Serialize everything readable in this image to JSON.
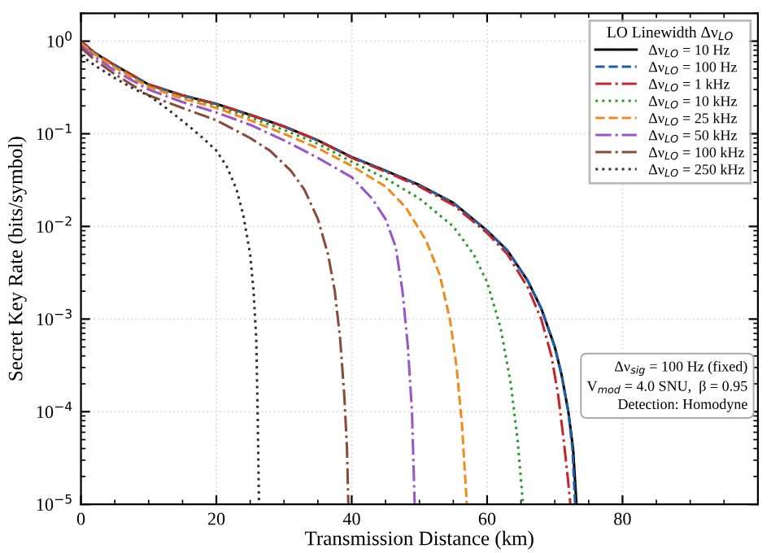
{
  "chart_data": {
    "type": "line",
    "xlabel": "Transmission Distance (km)",
    "ylabel": "Secret Key Rate (bits/symbol)",
    "log": "y",
    "xlim": [
      0,
      100
    ],
    "ylim": [
      1e-05,
      2
    ],
    "xticks": [
      0,
      20,
      40,
      60,
      80
    ],
    "yticks": [
      {
        "value": 1,
        "label": "10$^{0}$"
      },
      {
        "value": 0.1,
        "label": "10$^{−1}$"
      },
      {
        "value": 0.01,
        "label": "10$^{−2}$"
      },
      {
        "value": 0.001,
        "label": "10$^{−3}$"
      },
      {
        "value": 0.0001,
        "label": "10$^{−4}$"
      },
      {
        "value": 1e-05,
        "label": "10$^{−5}$"
      }
    ],
    "grid": true,
    "legend": "top right",
    "legend_title": "LO Linewidth Δν$_{LO}$",
    "marker": "none",
    "annotations": [
      "Δν$_{sig}$ = 100 Hz (fixed)",
      "V$_{mod}$ = 4.0 SNU,  β = 0.95",
      "Detection: Homodyne"
    ],
    "series": [
      {
        "name": "Δν$_{LO}$ = 10 Hz",
        "color": "#000000",
        "line_style": "solid",
        "x": [
          0,
          2,
          5,
          10,
          15,
          20,
          25,
          30,
          35,
          40,
          45,
          50,
          55,
          60,
          63,
          66,
          68,
          70,
          71,
          72,
          72.7,
          73.2
        ],
        "values": [
          1.0,
          0.75,
          0.55,
          0.34,
          0.26,
          0.21,
          0.16,
          0.12,
          0.085,
          0.056,
          0.04,
          0.028,
          0.018,
          0.009,
          0.0055,
          0.0026,
          0.0013,
          0.0005,
          0.00025,
          0.0001,
          4e-05,
          1e-05
        ]
      },
      {
        "name": "Δν$_{LO}$ = 100 Hz",
        "color": "#1f5fa8",
        "line_style": "dashed",
        "x": [
          0,
          2,
          5,
          10,
          15,
          20,
          25,
          30,
          35,
          40,
          45,
          50,
          55,
          60,
          63,
          66,
          68,
          70,
          71,
          72,
          72.6,
          73.0
        ],
        "values": [
          1.0,
          0.75,
          0.55,
          0.34,
          0.26,
          0.21,
          0.16,
          0.12,
          0.085,
          0.056,
          0.04,
          0.028,
          0.018,
          0.009,
          0.0055,
          0.0026,
          0.0013,
          0.0005,
          0.00025,
          0.0001,
          4e-05,
          1e-05
        ]
      },
      {
        "name": "Δν$_{LO}$ = 1 kHz",
        "color": "#c0282d",
        "line_style": "dashdot",
        "x": [
          0,
          2,
          5,
          10,
          15,
          20,
          25,
          30,
          35,
          40,
          45,
          50,
          55,
          60,
          63,
          66,
          68,
          69.5,
          70.5,
          71.3,
          71.9,
          72.3
        ],
        "values": [
          1.0,
          0.75,
          0.55,
          0.34,
          0.26,
          0.21,
          0.16,
          0.12,
          0.085,
          0.055,
          0.039,
          0.027,
          0.017,
          0.0085,
          0.005,
          0.0022,
          0.001,
          0.0004,
          0.00015,
          5e-05,
          2e-05,
          1e-05
        ]
      },
      {
        "name": "Δν$_{LO}$ = 10 kHz",
        "color": "#2a9a2a",
        "line_style": "dotted",
        "x": [
          0,
          2,
          5,
          10,
          15,
          20,
          25,
          30,
          35,
          40,
          45,
          50,
          55,
          58,
          60,
          62,
          63.5,
          64.5,
          65.3
        ],
        "values": [
          0.97,
          0.73,
          0.53,
          0.33,
          0.25,
          0.2,
          0.15,
          0.11,
          0.078,
          0.05,
          0.033,
          0.02,
          0.01,
          0.005,
          0.0025,
          0.0008,
          0.0002,
          5e-05,
          1e-05
        ]
      },
      {
        "name": "Δν$_{LO}$ = 25 kHz",
        "color": "#f08c1e",
        "line_style": "dashed",
        "x": [
          0,
          2,
          5,
          10,
          15,
          20,
          25,
          30,
          35,
          40,
          45,
          48,
          51,
          53,
          54.5,
          55.5,
          56.3,
          57
        ],
        "values": [
          0.95,
          0.72,
          0.52,
          0.32,
          0.24,
          0.19,
          0.14,
          0.1,
          0.07,
          0.045,
          0.027,
          0.016,
          0.007,
          0.003,
          0.001,
          0.0003,
          7e-05,
          1e-05
        ]
      },
      {
        "name": "Δν$_{LO}$ = 50 kHz",
        "color": "#9a55c8",
        "line_style": "dashdot",
        "x": [
          0,
          2,
          5,
          10,
          15,
          20,
          25,
          30,
          35,
          40,
          43,
          45,
          46.5,
          47.5,
          48.3,
          48.9,
          49.3
        ],
        "values": [
          0.9,
          0.68,
          0.48,
          0.3,
          0.22,
          0.17,
          0.125,
          0.085,
          0.055,
          0.034,
          0.02,
          0.012,
          0.006,
          0.002,
          0.0005,
          0.0001,
          1e-05
        ]
      },
      {
        "name": "Δν$_{LO}$ = 100 kHz",
        "color": "#8c4a3a",
        "line_style": "dashdot",
        "x": [
          0,
          2,
          5,
          10,
          15,
          20,
          25,
          28,
          31,
          33,
          35,
          36.5,
          37.5,
          38.3,
          38.9,
          39.3,
          39.5
        ],
        "values": [
          0.85,
          0.63,
          0.44,
          0.26,
          0.19,
          0.14,
          0.09,
          0.065,
          0.04,
          0.025,
          0.012,
          0.005,
          0.002,
          0.0006,
          0.00015,
          4e-05,
          1e-05
        ]
      },
      {
        "name": "Δν$_{LO}$ = 250 kHz",
        "color": "#333333",
        "line_style": "dotted",
        "x": [
          0,
          2,
          5,
          8,
          10,
          13,
          16,
          18,
          20,
          21.5,
          23,
          24,
          25,
          25.5,
          25.9,
          26.1,
          26.3
        ],
        "values": [
          0.7,
          0.55,
          0.4,
          0.3,
          0.26,
          0.18,
          0.12,
          0.09,
          0.066,
          0.045,
          0.025,
          0.013,
          0.005,
          0.002,
          0.0006,
          0.0001,
          1e-05
        ]
      }
    ]
  }
}
